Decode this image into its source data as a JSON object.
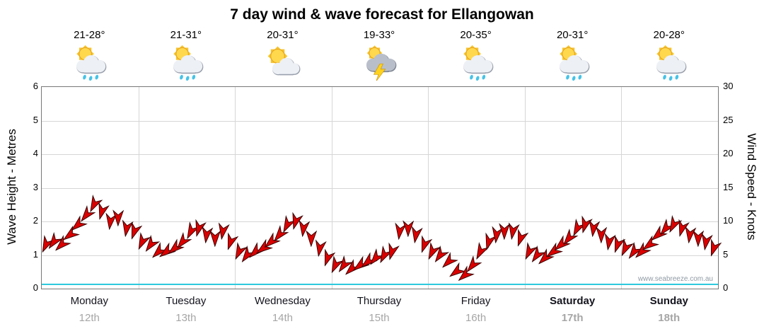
{
  "title": "7 day wind & wave forecast for Ellangowan",
  "watermark": "www.seabreeze.com.au",
  "axes": {
    "left_label": "Wave Height - Metres",
    "right_label": "Wind Speed - Knots"
  },
  "days": [
    {
      "name": "Monday",
      "date": "12th",
      "temp": "21-28°",
      "icon": "sun-cloud-rain",
      "bold": false
    },
    {
      "name": "Tuesday",
      "date": "13th",
      "temp": "21-31°",
      "icon": "sun-cloud-rain",
      "bold": false
    },
    {
      "name": "Wednesday",
      "date": "14th",
      "temp": "20-31°",
      "icon": "sun-cloud",
      "bold": false
    },
    {
      "name": "Thursday",
      "date": "15th",
      "temp": "19-33°",
      "icon": "storm",
      "bold": false
    },
    {
      "name": "Friday",
      "date": "16th",
      "temp": "20-35°",
      "icon": "sun-cloud-rain",
      "bold": false
    },
    {
      "name": "Saturday",
      "date": "17th",
      "temp": "20-31°",
      "icon": "sun-cloud-rain",
      "bold": true
    },
    {
      "name": "Sunday",
      "date": "18th",
      "temp": "20-28°",
      "icon": "sun-cloud-rain",
      "bold": true
    }
  ],
  "chart_data": {
    "type": "line",
    "title": "7 day wind & wave forecast for Ellangowan",
    "x_categories": [
      "Monday 12th",
      "Tuesday 13th",
      "Wednesday 14th",
      "Thursday 15th",
      "Friday 16th",
      "Saturday 17th",
      "Sunday 18th"
    ],
    "points_per_day": 12,
    "ylabel_left": "Wave Height - Metres",
    "ylabel_right": "Wind Speed - Knots",
    "ylim_left": [
      0,
      6
    ],
    "ylim_right": [
      0,
      30
    ],
    "left_ticks": [
      0,
      1,
      2,
      3,
      4,
      5,
      6
    ],
    "right_ticks": [
      0,
      5,
      10,
      15,
      20,
      25,
      30
    ],
    "grid": true,
    "series": [
      {
        "name": "Wind Speed",
        "unit": "knots",
        "axis": "right",
        "style": "red-wind-arrows",
        "color": "#db0000",
        "values": [
          6.5,
          7,
          6.5,
          8,
          9.5,
          11,
          12.5,
          11.5,
          10,
          10.5,
          9,
          8.5,
          7,
          6.5,
          5.5,
          5.5,
          6,
          7,
          8.5,
          9,
          8,
          7.5,
          8.5,
          7,
          5.5,
          5,
          5.5,
          6,
          7,
          8,
          9.5,
          10,
          9,
          7.5,
          6,
          4.5,
          3.5,
          3.5,
          3,
          3.5,
          4,
          4.5,
          5,
          5.5,
          8.5,
          9,
          8,
          6.5,
          5.5,
          5,
          4,
          2.5,
          2,
          3.5,
          5.5,
          7,
          8,
          8.5,
          8.5,
          7.5,
          5.5,
          5,
          4.5,
          5.5,
          6.5,
          7.5,
          9,
          9.5,
          9,
          8,
          7,
          6.5,
          6,
          5.5,
          5.5,
          6.5,
          8,
          9,
          9.5,
          9,
          8,
          7.5,
          7,
          6
        ],
        "directions_deg": [
          205,
          216,
          226,
          233,
          229,
          219,
          207,
          196,
          187,
          181,
          189,
          199
        ]
      },
      {
        "name": "Wave Height",
        "unit": "m",
        "axis": "left",
        "style": "cyan-line",
        "color": "#2ec9de",
        "constant_value": 0.1
      }
    ]
  }
}
